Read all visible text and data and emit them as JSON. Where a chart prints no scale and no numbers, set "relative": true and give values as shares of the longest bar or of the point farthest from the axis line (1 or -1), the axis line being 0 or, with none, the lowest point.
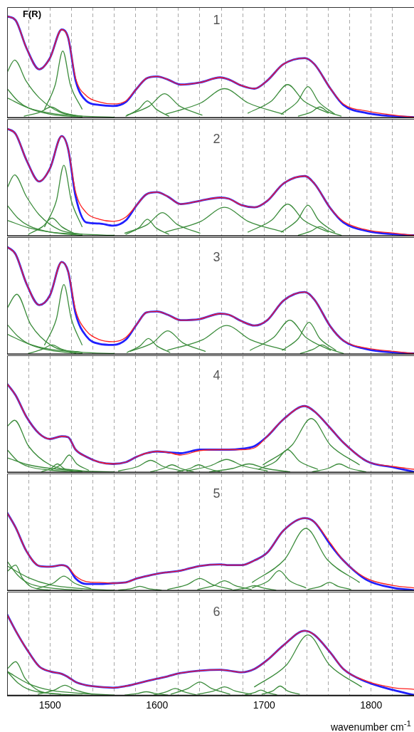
{
  "chart_data": [
    {
      "type": "line",
      "relative": true,
      "ylabel": "F(R)",
      "annotations": [
        "1"
      ],
      "grid": "x",
      "legend": false,
      "marker": "none",
      "tick_labels": false,
      "xlim": [
        1460,
        1840
      ],
      "xticks": [
        {
          "value": 1480,
          "label": null
        },
        1500,
        {
          "value": 1520,
          "label": null
        },
        {
          "value": 1540,
          "label": null
        },
        {
          "value": 1560,
          "label": null
        },
        {
          "value": 1580,
          "label": null
        },
        1600,
        {
          "value": 1620,
          "label": null
        },
        {
          "value": 1640,
          "label": null
        },
        {
          "value": 1660,
          "label": null
        },
        {
          "value": 1680,
          "label": null
        },
        1700,
        {
          "value": 1720,
          "label": null
        },
        {
          "value": 1740,
          "label": null
        },
        {
          "value": 1760,
          "label": null
        },
        {
          "value": 1780,
          "label": null
        },
        1800,
        {
          "value": 1820,
          "label": null
        }
      ],
      "x": [
        1460,
        1468,
        1478,
        1490,
        1500,
        1511,
        1517,
        1524,
        1534,
        1546,
        1559,
        1571,
        1581,
        1590,
        1600,
        1610,
        1622,
        1640,
        1659,
        1667,
        1679,
        1691,
        1703,
        1718,
        1738,
        1747,
        1762,
        1774,
        1796,
        1821,
        1840
      ],
      "series": [
        {
          "color": "#3c8c3c",
          "x": [
            1460,
            1467,
            1478,
            1490,
            1509,
            1530
          ],
          "values": [
            0.45,
            0.57,
            0.36,
            0.2,
            0.06,
            0.02
          ]
        },
        {
          "color": "#3c8c3c",
          "x": [
            1495,
            1505,
            1512,
            1519,
            1530
          ],
          "values": [
            0.09,
            0.33,
            0.66,
            0.33,
            0.09
          ]
        },
        {
          "color": "#3c8c3c",
          "x": [
            1460,
            1470,
            1480,
            1500,
            1530
          ],
          "values": [
            0.29,
            0.17,
            0.1,
            0.04,
            0.01
          ]
        },
        {
          "color": "#3c8c3c",
          "x": [
            1460,
            1480,
            1500,
            1530,
            1560
          ],
          "values": [
            0.2,
            0.1,
            0.05,
            0.02,
            0.01
          ]
        },
        {
          "color": "#3c8c3c",
          "x": [
            1476,
            1491,
            1501,
            1511,
            1526
          ],
          "values": [
            0.02,
            0.06,
            0.11,
            0.06,
            0.02
          ]
        },
        {
          "color": "#3c8c3c",
          "x": [
            1571,
            1583,
            1591,
            1599,
            1611
          ],
          "values": [
            0.02,
            0.09,
            0.17,
            0.09,
            0.02
          ]
        },
        {
          "color": "#3c8c3c",
          "x": [
            1572,
            1593,
            1607,
            1621,
            1642
          ],
          "values": [
            0.03,
            0.12,
            0.24,
            0.12,
            0.03
          ]
        },
        {
          "color": "#3c8c3c",
          "x": [
            1608,
            1641,
            1663,
            1685,
            1718
          ],
          "values": [
            0.04,
            0.15,
            0.29,
            0.15,
            0.04
          ]
        },
        {
          "color": "#3c8c3c",
          "x": [
            1685,
            1707,
            1722,
            1737,
            1760
          ],
          "values": [
            0.05,
            0.17,
            0.33,
            0.17,
            0.05
          ]
        },
        {
          "color": "#3c8c3c",
          "x": [
            1716,
            1731,
            1741,
            1751,
            1766
          ],
          "values": [
            0.04,
            0.16,
            0.31,
            0.16,
            0.04
          ]
        },
        {
          "color": "#3c8c3c",
          "x": [
            1732,
            1744,
            1752,
            1760,
            1772
          ],
          "values": [
            0.02,
            0.06,
            0.11,
            0.06,
            0.02
          ]
        },
        {
          "color": "#2020ff",
          "values": [
            1.0,
            0.96,
            0.69,
            0.48,
            0.59,
            0.87,
            0.79,
            0.37,
            0.17,
            0.13,
            0.12,
            0.16,
            0.29,
            0.39,
            0.41,
            0.38,
            0.33,
            0.35,
            0.4,
            0.38,
            0.32,
            0.29,
            0.37,
            0.53,
            0.59,
            0.53,
            0.29,
            0.13,
            0.05,
            0.02,
            0.01
          ]
        },
        {
          "color": "#ff2020",
          "values": [
            1.0,
            0.96,
            0.69,
            0.48,
            0.59,
            0.87,
            0.79,
            0.39,
            0.22,
            0.16,
            0.14,
            0.17,
            0.29,
            0.39,
            0.41,
            0.38,
            0.33,
            0.35,
            0.4,
            0.38,
            0.32,
            0.29,
            0.37,
            0.53,
            0.59,
            0.53,
            0.29,
            0.14,
            0.07,
            0.03,
            0.01
          ]
        }
      ]
    },
    {
      "type": "line",
      "relative": true,
      "annotations": [
        "2"
      ],
      "grid": "x",
      "legend": false,
      "marker": "none",
      "tick_labels": false,
      "xlim": [
        1460,
        1840
      ],
      "xticks": [
        {
          "value": 1480,
          "label": null
        },
        1500,
        {
          "value": 1520,
          "label": null
        },
        {
          "value": 1540,
          "label": null
        },
        {
          "value": 1560,
          "label": null
        },
        {
          "value": 1580,
          "label": null
        },
        1600,
        {
          "value": 1620,
          "label": null
        },
        {
          "value": 1640,
          "label": null
        },
        {
          "value": 1660,
          "label": null
        },
        {
          "value": 1680,
          "label": null
        },
        1700,
        {
          "value": 1720,
          "label": null
        },
        {
          "value": 1740,
          "label": null
        },
        {
          "value": 1760,
          "label": null
        },
        {
          "value": 1780,
          "label": null
        },
        1800,
        {
          "value": 1820,
          "label": null
        }
      ],
      "x": [
        1460,
        1468,
        1478,
        1490,
        1500,
        1511,
        1517,
        1524,
        1534,
        1546,
        1559,
        1571,
        1581,
        1590,
        1600,
        1610,
        1622,
        1640,
        1659,
        1667,
        1679,
        1691,
        1703,
        1718,
        1738,
        1747,
        1762,
        1774,
        1796,
        1821,
        1840
      ],
      "series": [
        {
          "color": "#3c8c3c",
          "x": [
            1460,
            1467,
            1478,
            1490,
            1509,
            1530
          ],
          "values": [
            0.45,
            0.57,
            0.37,
            0.2,
            0.06,
            0.02
          ]
        },
        {
          "color": "#3c8c3c",
          "x": [
            1495,
            1506,
            1513,
            1520,
            1530
          ],
          "values": [
            0.09,
            0.33,
            0.66,
            0.33,
            0.09
          ]
        },
        {
          "color": "#3c8c3c",
          "x": [
            1460,
            1470,
            1480,
            1500,
            1530
          ],
          "values": [
            0.29,
            0.17,
            0.1,
            0.04,
            0.01
          ]
        },
        {
          "color": "#3c8c3c",
          "x": [
            1460,
            1480,
            1500,
            1530,
            1560
          ],
          "values": [
            0.15,
            0.08,
            0.04,
            0.02,
            0.01
          ]
        },
        {
          "color": "#3c8c3c",
          "x": [
            1480,
            1493,
            1502,
            1511,
            1524
          ],
          "values": [
            0.02,
            0.09,
            0.17,
            0.09,
            0.02
          ]
        },
        {
          "color": "#3c8c3c",
          "x": [
            1571,
            1583,
            1591,
            1599,
            1611
          ],
          "values": [
            0.02,
            0.08,
            0.16,
            0.08,
            0.02
          ]
        },
        {
          "color": "#3c8c3c",
          "x": [
            1570,
            1591,
            1605,
            1619,
            1640
          ],
          "values": [
            0.03,
            0.11,
            0.22,
            0.11,
            0.03
          ]
        },
        {
          "color": "#3c8c3c",
          "x": [
            1608,
            1641,
            1663,
            1685,
            1718
          ],
          "values": [
            0.04,
            0.14,
            0.27,
            0.14,
            0.04
          ]
        },
        {
          "color": "#3c8c3c",
          "x": [
            1685,
            1707,
            1722,
            1737,
            1760
          ],
          "values": [
            0.04,
            0.15,
            0.3,
            0.15,
            0.04
          ]
        },
        {
          "color": "#3c8c3c",
          "x": [
            1716,
            1731,
            1741,
            1751,
            1766
          ],
          "values": [
            0.04,
            0.15,
            0.29,
            0.15,
            0.04
          ]
        },
        {
          "color": "#3c8c3c",
          "x": [
            1732,
            1744,
            1752,
            1760,
            1772
          ],
          "values": [
            0.01,
            0.05,
            0.09,
            0.05,
            0.01
          ]
        },
        {
          "color": "#2020ff",
          "values": [
            1.0,
            0.95,
            0.71,
            0.51,
            0.63,
            0.93,
            0.81,
            0.37,
            0.13,
            0.12,
            0.1,
            0.15,
            0.29,
            0.39,
            0.41,
            0.37,
            0.3,
            0.33,
            0.36,
            0.35,
            0.29,
            0.27,
            0.33,
            0.49,
            0.56,
            0.49,
            0.26,
            0.13,
            0.05,
            0.02,
            0.01
          ]
        },
        {
          "color": "#ff2020",
          "values": [
            1.0,
            0.95,
            0.71,
            0.51,
            0.63,
            0.93,
            0.81,
            0.41,
            0.22,
            0.16,
            0.14,
            0.18,
            0.29,
            0.39,
            0.41,
            0.37,
            0.3,
            0.33,
            0.36,
            0.35,
            0.29,
            0.27,
            0.33,
            0.49,
            0.56,
            0.49,
            0.26,
            0.14,
            0.06,
            0.03,
            0.01
          ]
        }
      ]
    },
    {
      "type": "line",
      "relative": true,
      "annotations": [
        "3"
      ],
      "grid": "x",
      "legend": false,
      "marker": "none",
      "tick_labels": false,
      "xlim": [
        1460,
        1840
      ],
      "xticks": [
        {
          "value": 1480,
          "label": null
        },
        1500,
        {
          "value": 1520,
          "label": null
        },
        {
          "value": 1540,
          "label": null
        },
        {
          "value": 1560,
          "label": null
        },
        {
          "value": 1580,
          "label": null
        },
        1600,
        {
          "value": 1620,
          "label": null
        },
        {
          "value": 1640,
          "label": null
        },
        {
          "value": 1660,
          "label": null
        },
        {
          "value": 1680,
          "label": null
        },
        1700,
        {
          "value": 1720,
          "label": null
        },
        {
          "value": 1740,
          "label": null
        },
        {
          "value": 1760,
          "label": null
        },
        {
          "value": 1780,
          "label": null
        },
        1800,
        {
          "value": 1820,
          "label": null
        }
      ],
      "x": [
        1460,
        1468,
        1478,
        1490,
        1500,
        1511,
        1517,
        1524,
        1534,
        1546,
        1559,
        1571,
        1581,
        1590,
        1600,
        1610,
        1622,
        1640,
        1659,
        1667,
        1679,
        1691,
        1703,
        1718,
        1738,
        1747,
        1762,
        1774,
        1796,
        1821,
        1840
      ],
      "series": [
        {
          "color": "#3c8c3c",
          "x": [
            1460,
            1469,
            1482,
            1502,
            1530
          ],
          "values": [
            0.43,
            0.56,
            0.28,
            0.08,
            0.02
          ]
        },
        {
          "color": "#3c8c3c",
          "x": [
            1495,
            1506,
            1513,
            1520,
            1530
          ],
          "values": [
            0.09,
            0.33,
            0.65,
            0.33,
            0.09
          ]
        },
        {
          "color": "#3c8c3c",
          "x": [
            1460,
            1470,
            1480,
            1500,
            1530
          ],
          "values": [
            0.28,
            0.17,
            0.1,
            0.04,
            0.01
          ]
        },
        {
          "color": "#3c8c3c",
          "x": [
            1460,
            1480,
            1500,
            1530,
            1560
          ],
          "values": [
            0.19,
            0.1,
            0.05,
            0.02,
            0.01
          ]
        },
        {
          "color": "#3c8c3c",
          "x": [
            1480,
            1493,
            1502,
            1511,
            1524
          ],
          "values": [
            0.01,
            0.05,
            0.09,
            0.05,
            0.01
          ]
        },
        {
          "color": "#3c8c3c",
          "x": [
            1572,
            1584,
            1592,
            1600,
            1612
          ],
          "values": [
            0.02,
            0.08,
            0.15,
            0.08,
            0.02
          ]
        },
        {
          "color": "#3c8c3c",
          "x": [
            1575,
            1596,
            1610,
            1624,
            1645
          ],
          "values": [
            0.03,
            0.11,
            0.22,
            0.11,
            0.03
          ]
        },
        {
          "color": "#3c8c3c",
          "x": [
            1610,
            1643,
            1665,
            1687,
            1720
          ],
          "values": [
            0.04,
            0.14,
            0.27,
            0.14,
            0.04
          ]
        },
        {
          "color": "#3c8c3c",
          "x": [
            1687,
            1709,
            1724,
            1739,
            1762
          ],
          "values": [
            0.04,
            0.16,
            0.32,
            0.16,
            0.04
          ]
        },
        {
          "color": "#3c8c3c",
          "x": [
            1717,
            1732,
            1742,
            1752,
            1767
          ],
          "values": [
            0.04,
            0.15,
            0.3,
            0.15,
            0.04
          ]
        },
        {
          "color": "#3c8c3c",
          "x": [
            1734,
            1746,
            1754,
            1762,
            1774
          ],
          "values": [
            0.01,
            0.05,
            0.09,
            0.05,
            0.01
          ]
        },
        {
          "color": "#2020ff",
          "values": [
            1.0,
            0.93,
            0.66,
            0.46,
            0.55,
            0.86,
            0.77,
            0.38,
            0.17,
            0.1,
            0.09,
            0.14,
            0.28,
            0.39,
            0.4,
            0.37,
            0.32,
            0.33,
            0.38,
            0.37,
            0.31,
            0.27,
            0.32,
            0.5,
            0.58,
            0.51,
            0.26,
            0.13,
            0.05,
            0.02,
            0.01
          ]
        },
        {
          "color": "#ff2020",
          "values": [
            1.0,
            0.93,
            0.66,
            0.46,
            0.55,
            0.86,
            0.77,
            0.41,
            0.22,
            0.14,
            0.12,
            0.16,
            0.28,
            0.39,
            0.4,
            0.37,
            0.32,
            0.33,
            0.38,
            0.37,
            0.31,
            0.27,
            0.32,
            0.5,
            0.58,
            0.51,
            0.26,
            0.13,
            0.06,
            0.03,
            0.01
          ]
        }
      ]
    },
    {
      "type": "line",
      "relative": true,
      "annotations": [
        "4"
      ],
      "grid": "x",
      "legend": false,
      "marker": "none",
      "tick_labels": false,
      "xlim": [
        1460,
        1840
      ],
      "xticks": [
        {
          "value": 1480,
          "label": null
        },
        1500,
        {
          "value": 1520,
          "label": null
        },
        {
          "value": 1540,
          "label": null
        },
        {
          "value": 1560,
          "label": null
        },
        {
          "value": 1580,
          "label": null
        },
        1600,
        {
          "value": 1620,
          "label": null
        },
        {
          "value": 1640,
          "label": null
        },
        {
          "value": 1660,
          "label": null
        },
        {
          "value": 1680,
          "label": null
        },
        1700,
        {
          "value": 1720,
          "label": null
        },
        {
          "value": 1740,
          "label": null
        },
        {
          "value": 1760,
          "label": null
        },
        {
          "value": 1780,
          "label": null
        },
        1800,
        {
          "value": 1820,
          "label": null
        }
      ],
      "x": [
        1460,
        1468,
        1478,
        1490,
        1500,
        1511,
        1517,
        1524,
        1534,
        1546,
        1559,
        1571,
        1581,
        1590,
        1600,
        1610,
        1622,
        1640,
        1659,
        1667,
        1679,
        1691,
        1703,
        1718,
        1738,
        1747,
        1762,
        1774,
        1796,
        1821,
        1840
      ],
      "series": [
        {
          "color": "#3c8c3c",
          "x": [
            1460,
            1467,
            1480,
            1500,
            1530
          ],
          "values": [
            0.52,
            0.59,
            0.3,
            0.09,
            0.02
          ]
        },
        {
          "color": "#3c8c3c",
          "x": [
            1460,
            1470,
            1480,
            1500,
            1530
          ],
          "values": [
            0.26,
            0.13,
            0.07,
            0.03,
            0.01
          ]
        },
        {
          "color": "#3c8c3c",
          "x": [
            1460,
            1480,
            1500,
            1530,
            1560
          ],
          "values": [
            0.17,
            0.09,
            0.05,
            0.02,
            0.01
          ]
        },
        {
          "color": "#3c8c3c",
          "x": [
            1501,
            1511,
            1518,
            1525,
            1536
          ],
          "values": [
            0.03,
            0.1,
            0.2,
            0.1,
            0.03
          ]
        },
        {
          "color": "#3c8c3c",
          "x": [
            1492,
            1501,
            1507,
            1513,
            1522
          ],
          "values": [
            0.01,
            0.05,
            0.1,
            0.05,
            0.01
          ]
        },
        {
          "color": "#3c8c3c",
          "x": [
            1564,
            1582,
            1594,
            1606,
            1624
          ],
          "values": [
            0.02,
            0.07,
            0.14,
            0.07,
            0.02
          ]
        },
        {
          "color": "#3c8c3c",
          "x": [
            1594,
            1606,
            1614,
            1622,
            1634
          ],
          "values": [
            0.01,
            0.05,
            0.09,
            0.05,
            0.01
          ]
        },
        {
          "color": "#3c8c3c",
          "x": [
            1619,
            1631,
            1639,
            1647,
            1659
          ],
          "values": [
            0.01,
            0.05,
            0.09,
            0.05,
            0.01
          ]
        },
        {
          "color": "#3c8c3c",
          "x": [
            1628,
            1650,
            1665,
            1680,
            1703
          ],
          "values": [
            0.02,
            0.08,
            0.15,
            0.08,
            0.02
          ]
        },
        {
          "color": "#3c8c3c",
          "x": [
            1649,
            1671,
            1686,
            1701,
            1724
          ],
          "values": [
            0.01,
            0.05,
            0.1,
            0.05,
            0.01
          ]
        },
        {
          "color": "#3c8c3c",
          "x": [
            1695,
            1711,
            1722,
            1733,
            1750
          ],
          "values": [
            0.04,
            0.13,
            0.26,
            0.13,
            0.04
          ]
        },
        {
          "color": "#3c8c3c",
          "x": [
            1699,
            1726,
            1744,
            1762,
            1789
          ],
          "values": [
            0.09,
            0.31,
            0.61,
            0.31,
            0.09
          ]
        },
        {
          "color": "#3c8c3c",
          "x": [
            1745,
            1760,
            1770,
            1780,
            1795
          ],
          "values": [
            0.01,
            0.05,
            0.1,
            0.05,
            0.01
          ]
        },
        {
          "color": "#2020ff",
          "values": [
            1.0,
            0.87,
            0.63,
            0.44,
            0.38,
            0.41,
            0.4,
            0.26,
            0.18,
            0.12,
            0.1,
            0.12,
            0.18,
            0.22,
            0.24,
            0.23,
            0.22,
            0.26,
            0.26,
            0.26,
            0.27,
            0.3,
            0.41,
            0.6,
            0.75,
            0.69,
            0.5,
            0.34,
            0.13,
            0.06,
            0.01
          ]
        },
        {
          "color": "#ff2020",
          "values": [
            1.0,
            0.87,
            0.63,
            0.44,
            0.38,
            0.41,
            0.4,
            0.26,
            0.18,
            0.12,
            0.1,
            0.12,
            0.18,
            0.22,
            0.24,
            0.23,
            0.2,
            0.25,
            0.26,
            0.26,
            0.26,
            0.28,
            0.41,
            0.6,
            0.75,
            0.69,
            0.5,
            0.34,
            0.13,
            0.07,
            0.04
          ]
        }
      ]
    },
    {
      "type": "line",
      "relative": true,
      "annotations": [
        "5"
      ],
      "grid": "x",
      "legend": false,
      "marker": "none",
      "tick_labels": false,
      "xlim": [
        1460,
        1840
      ],
      "xticks": [
        {
          "value": 1480,
          "label": null
        },
        1500,
        {
          "value": 1520,
          "label": null
        },
        {
          "value": 1540,
          "label": null
        },
        {
          "value": 1560,
          "label": null
        },
        {
          "value": 1580,
          "label": null
        },
        1600,
        {
          "value": 1620,
          "label": null
        },
        {
          "value": 1640,
          "label": null
        },
        {
          "value": 1660,
          "label": null
        },
        {
          "value": 1680,
          "label": null
        },
        1700,
        {
          "value": 1720,
          "label": null
        },
        {
          "value": 1740,
          "label": null
        },
        {
          "value": 1760,
          "label": null
        },
        {
          "value": 1780,
          "label": null
        },
        1800,
        {
          "value": 1820,
          "label": null
        }
      ],
      "x": [
        1460,
        1468,
        1478,
        1490,
        1500,
        1511,
        1517,
        1524,
        1534,
        1546,
        1559,
        1571,
        1581,
        1590,
        1600,
        1610,
        1622,
        1640,
        1659,
        1667,
        1679,
        1691,
        1703,
        1718,
        1738,
        1747,
        1762,
        1774,
        1796,
        1821,
        1840
      ],
      "series": [
        {
          "color": "#3c8c3c",
          "x": [
            1460,
            1470,
            1480,
            1500,
            1530
          ],
          "values": [
            0.38,
            0.2,
            0.1,
            0.04,
            0.01
          ]
        },
        {
          "color": "#3c8c3c",
          "x": [
            1460,
            1468,
            1474,
            1483,
            1500
          ],
          "values": [
            0.25,
            0.33,
            0.17,
            0.05,
            0.01
          ]
        },
        {
          "color": "#3c8c3c",
          "x": [
            1460,
            1480,
            1500,
            1530,
            1560
          ],
          "values": [
            0.32,
            0.17,
            0.08,
            0.03,
            0.01
          ]
        },
        {
          "color": "#3c8c3c",
          "x": [
            1488,
            1503,
            1513,
            1523,
            1538
          ],
          "values": [
            0.03,
            0.1,
            0.19,
            0.1,
            0.03
          ]
        },
        {
          "color": "#3c8c3c",
          "x": [
            1564,
            1576,
            1584,
            1592,
            1604
          ],
          "values": [
            0.01,
            0.03,
            0.06,
            0.03,
            0.01
          ]
        },
        {
          "color": "#3c8c3c",
          "x": [
            1610,
            1628,
            1640,
            1652,
            1670
          ],
          "values": [
            0.02,
            0.08,
            0.16,
            0.08,
            0.02
          ]
        },
        {
          "color": "#3c8c3c",
          "x": [
            1638,
            1653,
            1663,
            1673,
            1688
          ],
          "values": [
            0.02,
            0.07,
            0.13,
            0.07,
            0.02
          ]
        },
        {
          "color": "#3c8c3c",
          "x": [
            1671,
            1683,
            1691,
            1699,
            1711
          ],
          "values": [
            0.01,
            0.04,
            0.07,
            0.04,
            0.01
          ]
        },
        {
          "color": "#3c8c3c",
          "x": [
            1689,
            1704,
            1714,
            1724,
            1739
          ],
          "values": [
            0.04,
            0.13,
            0.26,
            0.13,
            0.04
          ]
        },
        {
          "color": "#3c8c3c",
          "x": [
            1689,
            1719,
            1739,
            1759,
            1789
          ],
          "values": [
            0.11,
            0.4,
            0.8,
            0.4,
            0.11
          ]
        },
        {
          "color": "#3c8c3c",
          "x": [
            1741,
            1753,
            1761,
            1769,
            1781
          ],
          "values": [
            0.02,
            0.06,
            0.11,
            0.06,
            0.02
          ]
        },
        {
          "color": "#2020ff",
          "values": [
            1.0,
            0.81,
            0.51,
            0.32,
            0.31,
            0.33,
            0.3,
            0.16,
            0.09,
            0.09,
            0.1,
            0.11,
            0.16,
            0.19,
            0.22,
            0.24,
            0.26,
            0.32,
            0.34,
            0.33,
            0.33,
            0.39,
            0.49,
            0.77,
            0.93,
            0.88,
            0.59,
            0.39,
            0.14,
            0.04,
            0.01
          ]
        },
        {
          "color": "#ff2020",
          "values": [
            1.0,
            0.81,
            0.51,
            0.32,
            0.31,
            0.33,
            0.3,
            0.19,
            0.12,
            0.11,
            0.1,
            0.11,
            0.16,
            0.19,
            0.22,
            0.24,
            0.26,
            0.32,
            0.34,
            0.33,
            0.33,
            0.39,
            0.49,
            0.77,
            0.93,
            0.88,
            0.61,
            0.39,
            0.16,
            0.07,
            0.04
          ]
        }
      ]
    },
    {
      "type": "line",
      "relative": true,
      "xlabel": "wavenumber cm$^{-1}$",
      "annotations": [
        "6"
      ],
      "grid": "x",
      "legend": false,
      "marker": "none",
      "tick_labels": "x",
      "xlim": [
        1460,
        1840
      ],
      "xticks": [
        {
          "value": 1480,
          "label": null
        },
        1500,
        {
          "value": 1520,
          "label": null
        },
        {
          "value": 1540,
          "label": null
        },
        {
          "value": 1560,
          "label": null
        },
        {
          "value": 1580,
          "label": null
        },
        1600,
        {
          "value": 1620,
          "label": null
        },
        {
          "value": 1640,
          "label": null
        },
        {
          "value": 1660,
          "label": null
        },
        {
          "value": 1680,
          "label": null
        },
        1700,
        {
          "value": 1720,
          "label": null
        },
        {
          "value": 1740,
          "label": null
        },
        {
          "value": 1760,
          "label": null
        },
        {
          "value": 1780,
          "label": null
        },
        1800,
        {
          "value": 1820,
          "label": null
        }
      ],
      "x": [
        1460,
        1468,
        1478,
        1490,
        1500,
        1511,
        1517,
        1524,
        1534,
        1546,
        1559,
        1571,
        1581,
        1590,
        1600,
        1610,
        1622,
        1640,
        1659,
        1667,
        1679,
        1691,
        1703,
        1718,
        1738,
        1747,
        1762,
        1774,
        1796,
        1821,
        1840
      ],
      "series": [
        {
          "color": "#3c8c3c",
          "x": [
            1460,
            1468,
            1477,
            1490,
            1510
          ],
          "values": [
            0.33,
            0.42,
            0.21,
            0.06,
            0.02
          ]
        },
        {
          "color": "#3c8c3c",
          "x": [
            1460,
            1470,
            1480,
            1500,
            1530
          ],
          "values": [
            0.3,
            0.16,
            0.08,
            0.03,
            0.01
          ]
        },
        {
          "color": "#3c8c3c",
          "x": [
            1460,
            1480,
            1500,
            1530,
            1560
          ],
          "values": [
            0.3,
            0.15,
            0.07,
            0.03,
            0.01
          ]
        },
        {
          "color": "#3c8c3c",
          "x": [
            1489,
            1504,
            1514,
            1524,
            1539
          ],
          "values": [
            0.02,
            0.07,
            0.13,
            0.07,
            0.02
          ]
        },
        {
          "color": "#3c8c3c",
          "x": [
            1570,
            1582,
            1590,
            1598,
            1610
          ],
          "values": [
            0.01,
            0.03,
            0.05,
            0.03,
            0.01
          ]
        },
        {
          "color": "#3c8c3c",
          "x": [
            1597,
            1609,
            1617,
            1625,
            1637
          ],
          "values": [
            0.01,
            0.05,
            0.09,
            0.05,
            0.01
          ]
        },
        {
          "color": "#3c8c3c",
          "x": [
            1613,
            1629,
            1640,
            1651,
            1668
          ],
          "values": [
            0.02,
            0.09,
            0.17,
            0.09,
            0.02
          ]
        },
        {
          "color": "#3c8c3c",
          "x": [
            1638,
            1653,
            1663,
            1673,
            1688
          ],
          "values": [
            0.02,
            0.06,
            0.11,
            0.06,
            0.02
          ]
        },
        {
          "color": "#3c8c3c",
          "x": [
            1682,
            1691,
            1697,
            1703,
            1712
          ],
          "values": [
            0.01,
            0.04,
            0.07,
            0.04,
            0.01
          ]
        },
        {
          "color": "#3c8c3c",
          "x": [
            1698,
            1708,
            1715,
            1722,
            1733
          ],
          "values": [
            0.02,
            0.06,
            0.12,
            0.06,
            0.02
          ]
        },
        {
          "color": "#3c8c3c",
          "x": [
            1691,
            1721,
            1741,
            1761,
            1791
          ],
          "values": [
            0.11,
            0.38,
            0.75,
            0.38,
            0.11
          ]
        },
        {
          "color": "#2020ff",
          "values": [
            1.0,
            0.8,
            0.58,
            0.36,
            0.3,
            0.27,
            0.23,
            0.17,
            0.13,
            0.11,
            0.1,
            0.12,
            0.15,
            0.18,
            0.21,
            0.24,
            0.28,
            0.31,
            0.32,
            0.31,
            0.29,
            0.33,
            0.44,
            0.62,
            0.8,
            0.75,
            0.53,
            0.33,
            0.17,
            0.07,
            0.01
          ]
        },
        {
          "color": "#ff2020",
          "values": [
            1.0,
            0.8,
            0.58,
            0.36,
            0.3,
            0.27,
            0.23,
            0.17,
            0.13,
            0.11,
            0.1,
            0.12,
            0.15,
            0.18,
            0.21,
            0.24,
            0.28,
            0.31,
            0.32,
            0.31,
            0.29,
            0.33,
            0.44,
            0.62,
            0.8,
            0.75,
            0.53,
            0.33,
            0.18,
            0.1,
            0.08
          ]
        }
      ]
    }
  ]
}
